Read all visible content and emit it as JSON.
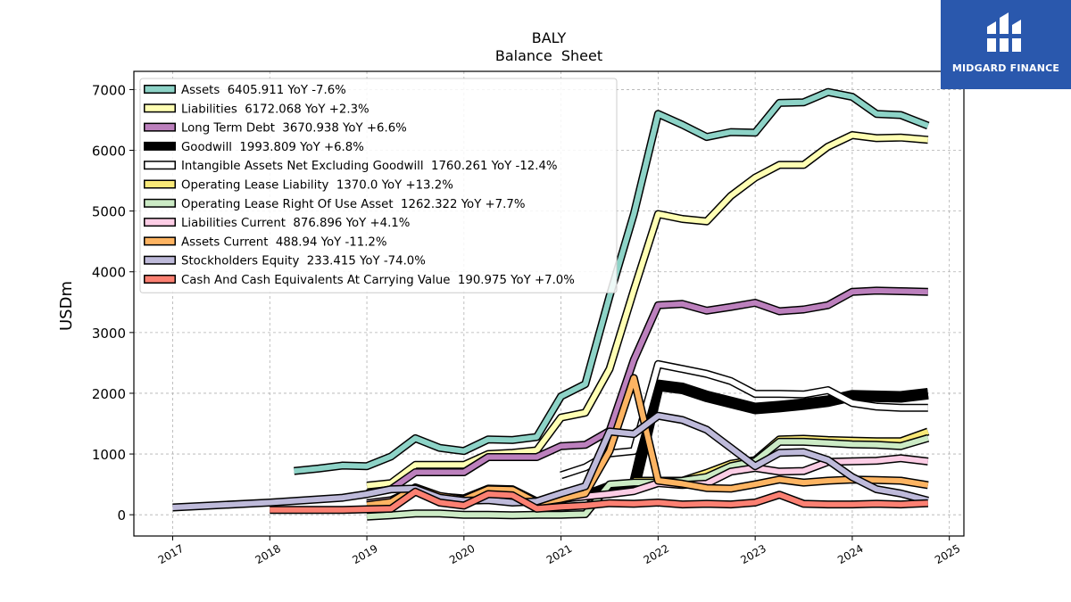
{
  "logo": {
    "text": "MIDGARD FINANCE"
  },
  "chart_data": {
    "type": "line",
    "title": "BALY",
    "subtitle": "Balance  Sheet",
    "ylabel": "USDm",
    "xlabel": "",
    "ylim": [
      -350,
      7300
    ],
    "xlim": [
      2016.6,
      2025.15
    ],
    "yticks": [
      0,
      1000,
      2000,
      3000,
      4000,
      5000,
      6000,
      7000
    ],
    "xticks": [
      2017,
      2018,
      2019,
      2020,
      2021,
      2022,
      2023,
      2024,
      2025
    ],
    "grid": true,
    "legend_position": "top-left",
    "series": [
      {
        "name": "Assets  6405.911 YoY -7.6%",
        "color": "#8dd3c7",
        "width": 6,
        "points": [
          [
            2018.25,
            720
          ],
          [
            2018.5,
            760
          ],
          [
            2018.75,
            810
          ],
          [
            2019.0,
            800
          ],
          [
            2019.25,
            960
          ],
          [
            2019.5,
            1260
          ],
          [
            2019.75,
            1100
          ],
          [
            2020.0,
            1050
          ],
          [
            2020.25,
            1240
          ],
          [
            2020.5,
            1230
          ],
          [
            2020.75,
            1280
          ],
          [
            2021.0,
            1950
          ],
          [
            2021.25,
            2150
          ],
          [
            2021.5,
            3600
          ],
          [
            2021.75,
            4950
          ],
          [
            2022.0,
            6600
          ],
          [
            2022.25,
            6420
          ],
          [
            2022.5,
            6220
          ],
          [
            2022.75,
            6300
          ],
          [
            2023.0,
            6290
          ],
          [
            2023.25,
            6780
          ],
          [
            2023.5,
            6790
          ],
          [
            2023.75,
            6960
          ],
          [
            2024.0,
            6880
          ],
          [
            2024.25,
            6600
          ],
          [
            2024.5,
            6580
          ],
          [
            2024.78,
            6406
          ]
        ]
      },
      {
        "name": "Liabilities  6172.068 YoY +2.3%",
        "color": "#ffffb3",
        "width": 6,
        "points": [
          [
            2019.0,
            480
          ],
          [
            2019.25,
            520
          ],
          [
            2019.5,
            820
          ],
          [
            2019.75,
            820
          ],
          [
            2020.0,
            820
          ],
          [
            2020.25,
            1000
          ],
          [
            2020.5,
            1020
          ],
          [
            2020.75,
            1060
          ],
          [
            2021.0,
            1600
          ],
          [
            2021.25,
            1680
          ],
          [
            2021.5,
            2400
          ],
          [
            2021.75,
            3700
          ],
          [
            2022.0,
            4950
          ],
          [
            2022.25,
            4870
          ],
          [
            2022.5,
            4830
          ],
          [
            2022.75,
            5250
          ],
          [
            2023.0,
            5550
          ],
          [
            2023.25,
            5760
          ],
          [
            2023.5,
            5760
          ],
          [
            2023.75,
            6060
          ],
          [
            2024.0,
            6250
          ],
          [
            2024.25,
            6200
          ],
          [
            2024.5,
            6210
          ],
          [
            2024.78,
            6172
          ]
        ]
      },
      {
        "name": "Long Term Debt  3670.938 YoY +6.6%",
        "color": "#bc80bd",
        "width": 6,
        "points": [
          [
            2019.0,
            350
          ],
          [
            2019.25,
            420
          ],
          [
            2019.5,
            700
          ],
          [
            2019.75,
            700
          ],
          [
            2020.0,
            700
          ],
          [
            2020.25,
            950
          ],
          [
            2020.5,
            950
          ],
          [
            2020.75,
            950
          ],
          [
            2021.0,
            1130
          ],
          [
            2021.25,
            1150
          ],
          [
            2021.5,
            1380
          ],
          [
            2021.75,
            2550
          ],
          [
            2022.0,
            3450
          ],
          [
            2022.25,
            3470
          ],
          [
            2022.5,
            3360
          ],
          [
            2022.75,
            3420
          ],
          [
            2023.0,
            3490
          ],
          [
            2023.25,
            3350
          ],
          [
            2023.5,
            3380
          ],
          [
            2023.75,
            3450
          ],
          [
            2024.0,
            3670
          ],
          [
            2024.25,
            3690
          ],
          [
            2024.5,
            3680
          ],
          [
            2024.78,
            3671
          ]
        ]
      },
      {
        "name": "Goodwill  1993.809 YoY +6.8%",
        "color": "#000000",
        "width": 10,
        "points": [
          [
            2021.25,
            300
          ],
          [
            2021.5,
            450
          ],
          [
            2021.75,
            450
          ],
          [
            2022.0,
            2130
          ],
          [
            2022.25,
            2080
          ],
          [
            2022.5,
            1950
          ],
          [
            2022.75,
            1850
          ],
          [
            2023.0,
            1750
          ],
          [
            2023.25,
            1780
          ],
          [
            2023.5,
            1820
          ],
          [
            2023.75,
            1870
          ],
          [
            2024.0,
            1960
          ],
          [
            2024.25,
            1950
          ],
          [
            2024.5,
            1940
          ],
          [
            2024.78,
            1994
          ]
        ]
      },
      {
        "name": "Intangible Assets Net Excluding Goodwill  1760.261 YoY -12.4%",
        "color": "#ffffff",
        "width": 6,
        "points": [
          [
            2021.0,
            650
          ],
          [
            2021.25,
            780
          ],
          [
            2021.5,
            1010
          ],
          [
            2021.75,
            1050
          ],
          [
            2022.0,
            2480
          ],
          [
            2022.25,
            2400
          ],
          [
            2022.5,
            2320
          ],
          [
            2022.75,
            2200
          ],
          [
            2023.0,
            1990
          ],
          [
            2023.25,
            1990
          ],
          [
            2023.5,
            1980
          ],
          [
            2023.75,
            2050
          ],
          [
            2024.0,
            1840
          ],
          [
            2024.25,
            1780
          ],
          [
            2024.5,
            1760
          ],
          [
            2024.78,
            1760
          ]
        ]
      },
      {
        "name": "Operating Lease Liability  1370.0 YoY +13.2%",
        "color": "#f8e878",
        "width": 6,
        "points": [
          [
            2021.75,
            560
          ],
          [
            2022.0,
            560
          ],
          [
            2022.25,
            560
          ],
          [
            2022.5,
            690
          ],
          [
            2022.75,
            840
          ],
          [
            2023.0,
            900
          ],
          [
            2023.25,
            1240
          ],
          [
            2023.5,
            1250
          ],
          [
            2023.75,
            1230
          ],
          [
            2024.0,
            1220
          ],
          [
            2024.25,
            1210
          ],
          [
            2024.5,
            1210
          ],
          [
            2024.78,
            1370
          ]
        ]
      },
      {
        "name": "Operating Lease Right Of Use Asset  1262.322 YoY +7.7%",
        "color": "#ccebc5",
        "width": 6,
        "points": [
          [
            2019.0,
            -30
          ],
          [
            2019.25,
            -10
          ],
          [
            2019.5,
            20
          ],
          [
            2019.75,
            20
          ],
          [
            2020.0,
            0
          ],
          [
            2020.25,
            0
          ],
          [
            2020.5,
            -10
          ],
          [
            2020.75,
            0
          ],
          [
            2021.0,
            0
          ],
          [
            2021.25,
            10
          ],
          [
            2021.5,
            500
          ],
          [
            2021.75,
            530
          ],
          [
            2022.0,
            530
          ],
          [
            2022.25,
            560
          ],
          [
            2022.5,
            620
          ],
          [
            2022.75,
            800
          ],
          [
            2023.0,
            880
          ],
          [
            2023.25,
            1200
          ],
          [
            2023.5,
            1200
          ],
          [
            2023.75,
            1180
          ],
          [
            2024.0,
            1160
          ],
          [
            2024.25,
            1150
          ],
          [
            2024.5,
            1130
          ],
          [
            2024.78,
            1262
          ]
        ]
      },
      {
        "name": "Liabilities Current  876.896 YoY +4.1%",
        "color": "#fccde5",
        "width": 6,
        "points": [
          [
            2019.0,
            190
          ],
          [
            2019.25,
            240
          ],
          [
            2019.5,
            420
          ],
          [
            2019.75,
            300
          ],
          [
            2020.0,
            270
          ],
          [
            2020.25,
            430
          ],
          [
            2020.5,
            420
          ],
          [
            2020.75,
            220
          ],
          [
            2021.0,
            260
          ],
          [
            2021.25,
            300
          ],
          [
            2021.5,
            340
          ],
          [
            2021.75,
            390
          ],
          [
            2022.0,
            520
          ],
          [
            2022.25,
            490
          ],
          [
            2022.5,
            510
          ],
          [
            2022.75,
            710
          ],
          [
            2023.0,
            770
          ],
          [
            2023.25,
            710
          ],
          [
            2023.5,
            720
          ],
          [
            2023.75,
            870
          ],
          [
            2024.0,
            880
          ],
          [
            2024.25,
            890
          ],
          [
            2024.5,
            930
          ],
          [
            2024.78,
            877
          ]
        ]
      },
      {
        "name": "Assets Current  488.94 YoY -11.2%",
        "color": "#fdb462",
        "width": 6,
        "points": [
          [
            2019.0,
            160
          ],
          [
            2019.25,
            210
          ],
          [
            2019.5,
            450
          ],
          [
            2019.75,
            310
          ],
          [
            2020.0,
            250
          ],
          [
            2020.25,
            420
          ],
          [
            2020.5,
            410
          ],
          [
            2020.75,
            200
          ],
          [
            2021.0,
            260
          ],
          [
            2021.25,
            350
          ],
          [
            2021.5,
            1050
          ],
          [
            2021.75,
            2250
          ],
          [
            2022.0,
            560
          ],
          [
            2022.25,
            510
          ],
          [
            2022.5,
            440
          ],
          [
            2022.75,
            430
          ],
          [
            2023.0,
            500
          ],
          [
            2023.25,
            580
          ],
          [
            2023.5,
            530
          ],
          [
            2023.75,
            560
          ],
          [
            2024.0,
            580
          ],
          [
            2024.25,
            570
          ],
          [
            2024.5,
            560
          ],
          [
            2024.78,
            489
          ]
        ]
      },
      {
        "name": "Stockholders Equity  233.415 YoY -74.0%",
        "color": "#bebada",
        "width": 6,
        "points": [
          [
            2017.0,
            120
          ],
          [
            2018.0,
            200
          ],
          [
            2018.75,
            280
          ],
          [
            2019.0,
            340
          ],
          [
            2019.25,
            420
          ],
          [
            2019.5,
            430
          ],
          [
            2019.75,
            280
          ],
          [
            2020.0,
            230
          ],
          [
            2020.25,
            240
          ],
          [
            2020.5,
            200
          ],
          [
            2020.75,
            220
          ],
          [
            2021.0,
            350
          ],
          [
            2021.25,
            470
          ],
          [
            2021.5,
            1370
          ],
          [
            2021.75,
            1330
          ],
          [
            2022.0,
            1630
          ],
          [
            2022.25,
            1560
          ],
          [
            2022.5,
            1400
          ],
          [
            2022.75,
            1100
          ],
          [
            2023.0,
            800
          ],
          [
            2023.25,
            1020
          ],
          [
            2023.5,
            1030
          ],
          [
            2023.75,
            900
          ],
          [
            2024.0,
            620
          ],
          [
            2024.25,
            420
          ],
          [
            2024.5,
            350
          ],
          [
            2024.78,
            233
          ]
        ]
      },
      {
        "name": "Cash And Cash Equivalents At Carrying Value  190.975 YoY +7.0%",
        "color": "#fb8072",
        "width": 6,
        "points": [
          [
            2018.0,
            80
          ],
          [
            2018.75,
            80
          ],
          [
            2019.0,
            90
          ],
          [
            2019.25,
            100
          ],
          [
            2019.5,
            380
          ],
          [
            2019.75,
            200
          ],
          [
            2020.0,
            150
          ],
          [
            2020.25,
            340
          ],
          [
            2020.5,
            320
          ],
          [
            2020.75,
            100
          ],
          [
            2021.0,
            130
          ],
          [
            2021.25,
            150
          ],
          [
            2021.5,
            190
          ],
          [
            2021.75,
            180
          ],
          [
            2022.0,
            200
          ],
          [
            2022.25,
            170
          ],
          [
            2022.5,
            180
          ],
          [
            2022.75,
            170
          ],
          [
            2023.0,
            200
          ],
          [
            2023.25,
            330
          ],
          [
            2023.5,
            180
          ],
          [
            2023.75,
            170
          ],
          [
            2024.0,
            170
          ],
          [
            2024.25,
            180
          ],
          [
            2024.5,
            170
          ],
          [
            2024.78,
            191
          ]
        ]
      }
    ]
  }
}
